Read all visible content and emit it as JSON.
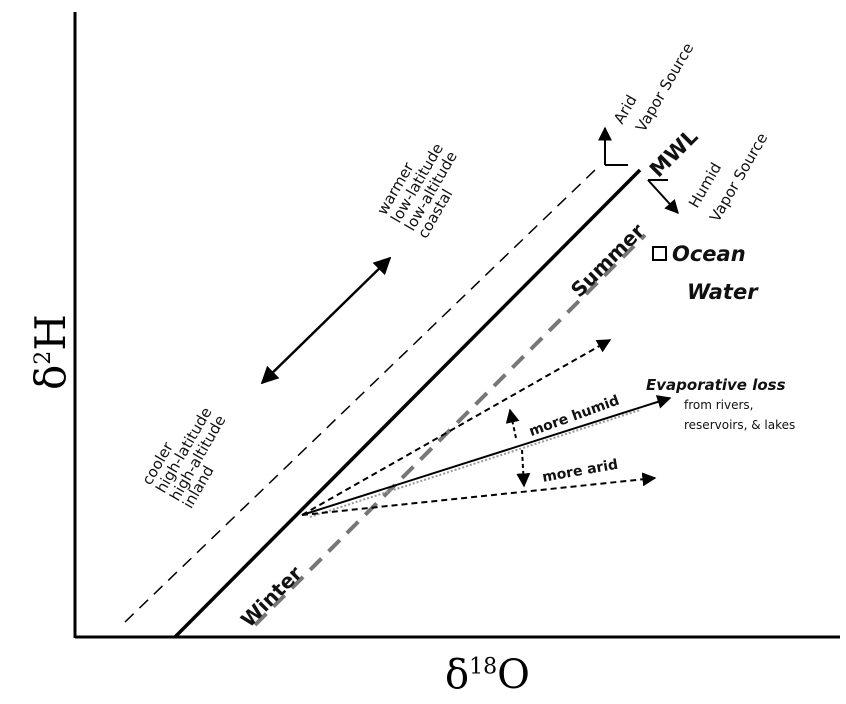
{
  "axes": {
    "x_label_main": "δ",
    "x_label_sup": "18",
    "x_label_tail": "O",
    "y_label_main": "δ",
    "y_label_sup": "2",
    "y_label_tail": "H"
  },
  "labels": {
    "mwl": "MWL",
    "summer": "Summer",
    "winter": "Winter",
    "ocean_water_1": "Ocean",
    "ocean_water_2": "Water",
    "arid_source_1": "Arid",
    "arid_source_2": "Vapor Source",
    "humid_source_1": "Humid",
    "humid_source_2": "Vapor Source",
    "warmer_group": "warmer\nlow-latitude\nlow-altitude\ncoastal",
    "cooler_group": "cooler\nhigh-latitude\nhigh-altitude\ninland",
    "evaporative_loss": "Evaporative loss",
    "evap_detail_1": "from rivers,",
    "evap_detail_2": "reservoirs, & lakes",
    "more_humid": "more humid",
    "more_arid": "more arid"
  }
}
